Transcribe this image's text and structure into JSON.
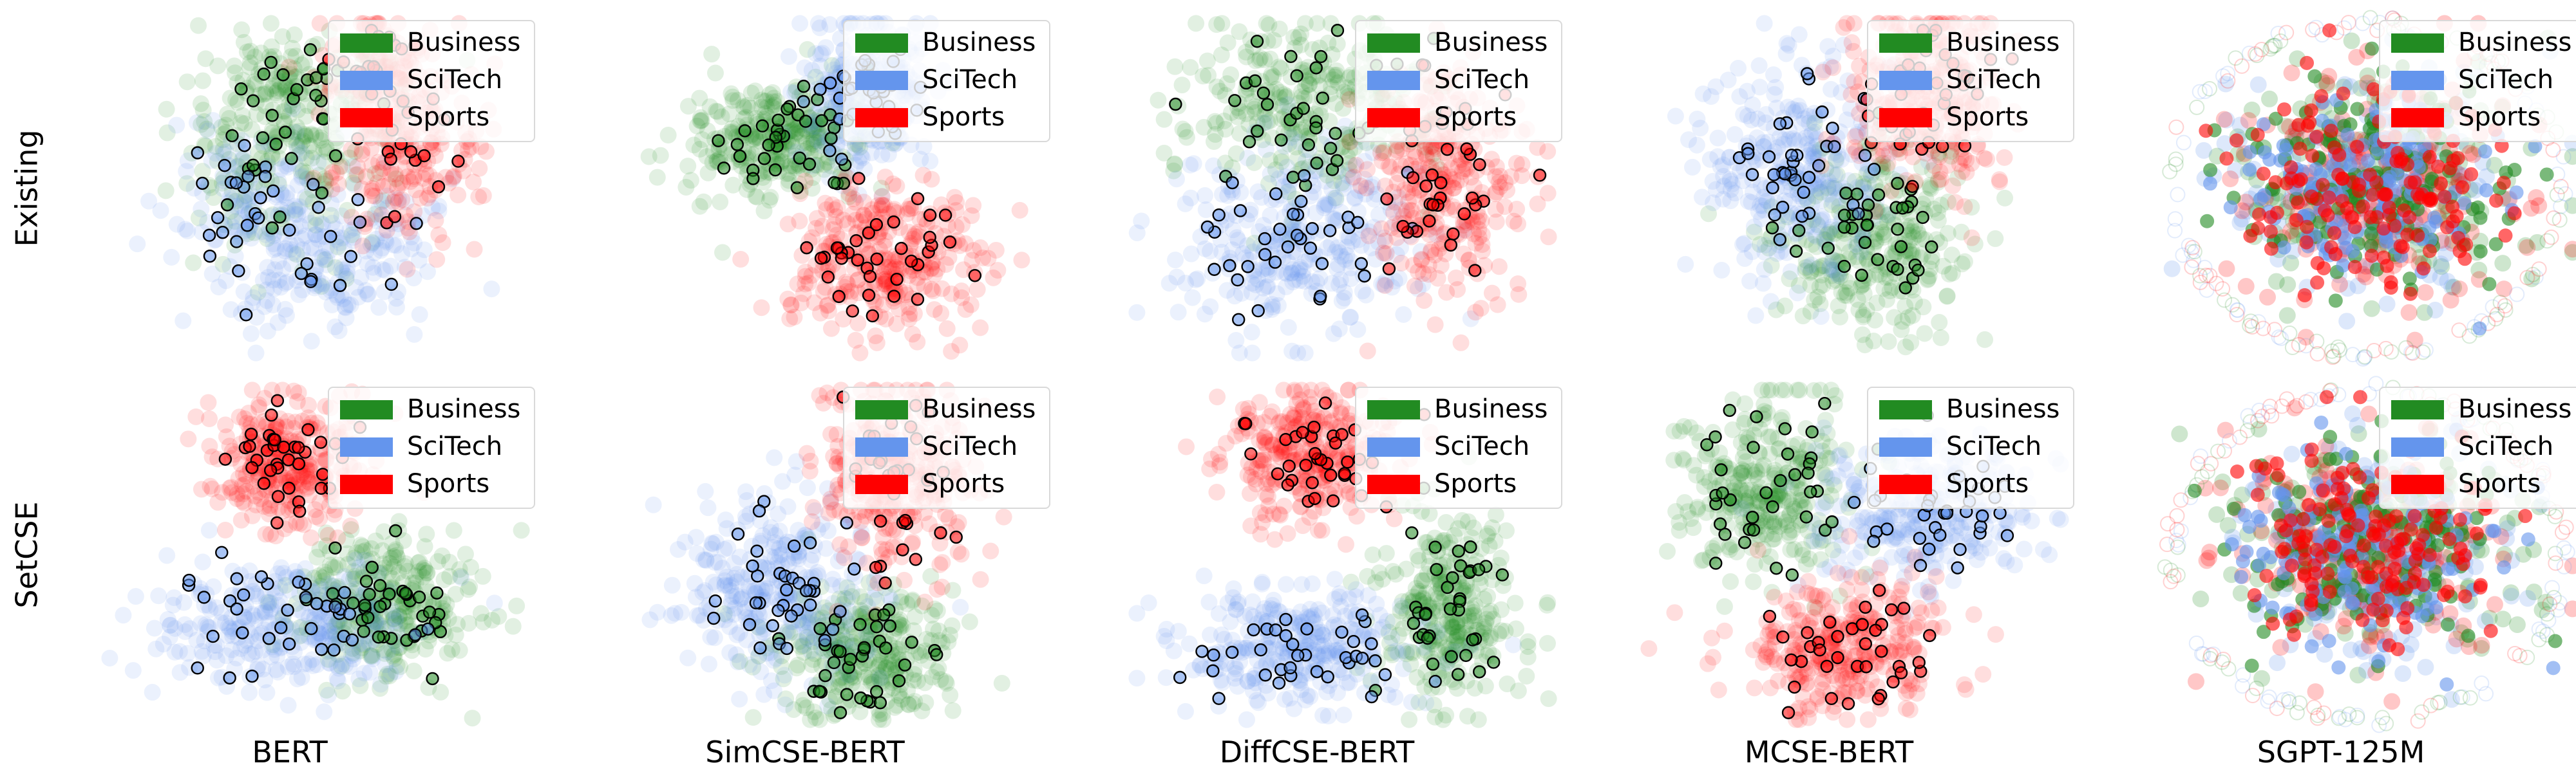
{
  "figure": {
    "row_labels": [
      "Existing",
      "SetCSE"
    ],
    "column_labels": [
      "BERT",
      "SimCSE-BERT",
      "DiffCSE-BERT",
      "MCSE-BERT",
      "SGPT-125M"
    ]
  },
  "legend": {
    "entries": [
      {
        "label": "Business",
        "color": "#228b22"
      },
      {
        "label": "SciTech",
        "color": "#6495ed"
      },
      {
        "label": "Sports",
        "color": "#ff0000"
      }
    ]
  },
  "chart_data": [
    {
      "type": "scatter",
      "row": "Existing",
      "column": "BERT",
      "series": [
        {
          "name": "Business",
          "clusters": [
            {
              "x": 0.4,
              "y": 0.62,
              "sx": 0.11,
              "sy": 0.16,
              "w": 0.7
            },
            {
              "x": 0.52,
              "y": 0.78,
              "sx": 0.1,
              "sy": 0.09,
              "w": 0.3
            }
          ]
        },
        {
          "name": "SciTech",
          "clusters": [
            {
              "x": 0.52,
              "y": 0.32,
              "sx": 0.13,
              "sy": 0.12,
              "w": 0.7
            },
            {
              "x": 0.33,
              "y": 0.5,
              "sx": 0.08,
              "sy": 0.1,
              "w": 0.3
            }
          ]
        },
        {
          "name": "Sports",
          "clusters": [
            {
              "x": 0.72,
              "y": 0.6,
              "sx": 0.08,
              "sy": 0.12,
              "w": 0.6
            },
            {
              "x": 0.64,
              "y": 0.84,
              "sx": 0.07,
              "sy": 0.08,
              "w": 0.4
            }
          ]
        }
      ]
    },
    {
      "type": "scatter",
      "row": "Existing",
      "column": "SimCSE-BERT",
      "series": [
        {
          "name": "Business",
          "clusters": [
            {
              "x": 0.38,
              "y": 0.63,
              "sx": 0.1,
              "sy": 0.08,
              "w": 1.0
            }
          ]
        },
        {
          "name": "SciTech",
          "clusters": [
            {
              "x": 0.58,
              "y": 0.78,
              "sx": 0.08,
              "sy": 0.11,
              "w": 1.0
            }
          ]
        },
        {
          "name": "Sports",
          "clusters": [
            {
              "x": 0.62,
              "y": 0.3,
              "sx": 0.11,
              "sy": 0.11,
              "w": 1.0
            }
          ]
        }
      ]
    },
    {
      "type": "scatter",
      "row": "Existing",
      "column": "DiffCSE-BERT",
      "series": [
        {
          "name": "Business",
          "clusters": [
            {
              "x": 0.42,
              "y": 0.74,
              "sx": 0.14,
              "sy": 0.12,
              "w": 1.0
            }
          ]
        },
        {
          "name": "SciTech",
          "clusters": [
            {
              "x": 0.4,
              "y": 0.36,
              "sx": 0.13,
              "sy": 0.13,
              "w": 1.0
            }
          ]
        },
        {
          "name": "Sports",
          "clusters": [
            {
              "x": 0.74,
              "y": 0.52,
              "sx": 0.09,
              "sy": 0.17,
              "w": 1.0
            }
          ]
        }
      ]
    },
    {
      "type": "scatter",
      "row": "Existing",
      "column": "MCSE-BERT",
      "series": [
        {
          "name": "Business",
          "clusters": [
            {
              "x": 0.54,
              "y": 0.36,
              "sx": 0.11,
              "sy": 0.14,
              "w": 1.0
            }
          ]
        },
        {
          "name": "SciTech",
          "clusters": [
            {
              "x": 0.36,
              "y": 0.56,
              "sx": 0.1,
              "sy": 0.15,
              "w": 1.0
            }
          ]
        },
        {
          "name": "Sports",
          "clusters": [
            {
              "x": 0.66,
              "y": 0.76,
              "sx": 0.09,
              "sy": 0.14,
              "w": 1.0
            }
          ]
        }
      ]
    },
    {
      "type": "scatter",
      "row": "Existing",
      "column": "SGPT-125M",
      "series": [
        {
          "name": "Business",
          "clusters": [
            {
              "x": 0.52,
              "y": 0.52,
              "sx": 0.17,
              "sy": 0.17,
              "w": 1.0
            }
          ]
        },
        {
          "name": "SciTech",
          "clusters": [
            {
              "x": 0.5,
              "y": 0.5,
              "sx": 0.17,
              "sy": 0.17,
              "w": 1.0
            }
          ]
        },
        {
          "name": "Sports",
          "clusters": [
            {
              "x": 0.5,
              "y": 0.52,
              "sx": 0.17,
              "sy": 0.17,
              "w": 1.0
            }
          ]
        }
      ]
    },
    {
      "type": "scatter",
      "row": "SetCSE",
      "column": "BERT",
      "series": [
        {
          "name": "Business",
          "clusters": [
            {
              "x": 0.66,
              "y": 0.36,
              "sx": 0.1,
              "sy": 0.1,
              "w": 1.0
            }
          ]
        },
        {
          "name": "SciTech",
          "clusters": [
            {
              "x": 0.44,
              "y": 0.3,
              "sx": 0.15,
              "sy": 0.09,
              "w": 1.0
            }
          ]
        },
        {
          "name": "Sports",
          "clusters": [
            {
              "x": 0.44,
              "y": 0.76,
              "sx": 0.09,
              "sy": 0.09,
              "w": 1.0
            }
          ]
        }
      ]
    },
    {
      "type": "scatter",
      "row": "SetCSE",
      "column": "SimCSE-BERT",
      "series": [
        {
          "name": "Business",
          "clusters": [
            {
              "x": 0.58,
              "y": 0.22,
              "sx": 0.1,
              "sy": 0.09,
              "w": 1.0
            }
          ]
        },
        {
          "name": "SciTech",
          "clusters": [
            {
              "x": 0.38,
              "y": 0.4,
              "sx": 0.11,
              "sy": 0.13,
              "w": 1.0
            }
          ]
        },
        {
          "name": "Sports",
          "clusters": [
            {
              "x": 0.64,
              "y": 0.72,
              "sx": 0.09,
              "sy": 0.13,
              "w": 1.0
            }
          ]
        }
      ]
    },
    {
      "type": "scatter",
      "row": "SetCSE",
      "column": "DiffCSE-BERT",
      "series": [
        {
          "name": "Business",
          "clusters": [
            {
              "x": 0.74,
              "y": 0.34,
              "sx": 0.08,
              "sy": 0.14,
              "w": 1.0
            }
          ]
        },
        {
          "name": "SciTech",
          "clusters": [
            {
              "x": 0.4,
              "y": 0.24,
              "sx": 0.14,
              "sy": 0.09,
              "w": 1.0
            }
          ]
        },
        {
          "name": "Sports",
          "clusters": [
            {
              "x": 0.42,
              "y": 0.78,
              "sx": 0.09,
              "sy": 0.1,
              "w": 1.0
            }
          ]
        }
      ]
    },
    {
      "type": "scatter",
      "row": "SetCSE",
      "column": "MCSE-BERT",
      "series": [
        {
          "name": "Business",
          "clusters": [
            {
              "x": 0.3,
              "y": 0.7,
              "sx": 0.1,
              "sy": 0.13,
              "w": 1.0
            }
          ]
        },
        {
          "name": "SciTech",
          "clusters": [
            {
              "x": 0.66,
              "y": 0.62,
              "sx": 0.13,
              "sy": 0.1,
              "w": 1.0
            }
          ]
        },
        {
          "name": "Sports",
          "clusters": [
            {
              "x": 0.48,
              "y": 0.24,
              "sx": 0.11,
              "sy": 0.1,
              "w": 1.0
            }
          ]
        }
      ]
    },
    {
      "type": "scatter",
      "row": "SetCSE",
      "column": "SGPT-125M",
      "series": [
        {
          "name": "Business",
          "clusters": [
            {
              "x": 0.52,
              "y": 0.52,
              "sx": 0.16,
              "sy": 0.16,
              "w": 1.0
            }
          ]
        },
        {
          "name": "SciTech",
          "clusters": [
            {
              "x": 0.5,
              "y": 0.5,
              "sx": 0.16,
              "sy": 0.16,
              "w": 1.0
            }
          ]
        },
        {
          "name": "Sports",
          "clusters": [
            {
              "x": 0.5,
              "y": 0.52,
              "sx": 0.16,
              "sy": 0.16,
              "w": 1.0
            }
          ]
        }
      ]
    }
  ]
}
